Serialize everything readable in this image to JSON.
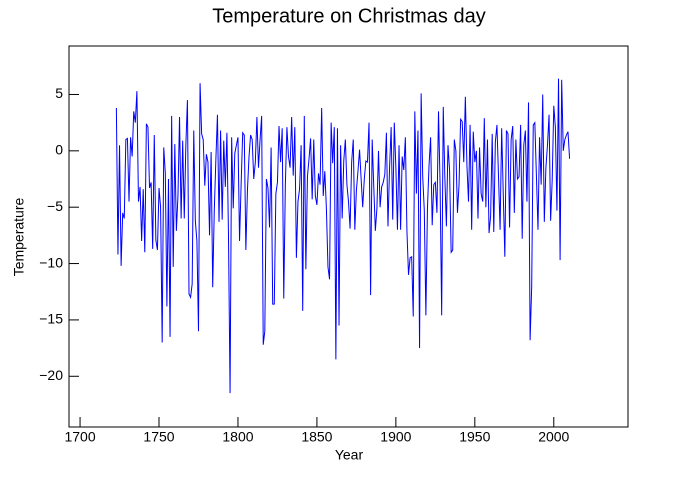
{
  "chart_data": {
    "type": "line",
    "title": "Temperature on Christmas day",
    "x_label": "Year",
    "y_label": "Temperature",
    "color": "#0000ff",
    "xlim": [
      1693,
      2047
    ],
    "xticks": [
      1700,
      1750,
      1800,
      1850,
      1900,
      1950,
      2000
    ],
    "ylim": [
      -24.5,
      9.3
    ],
    "yticks": [
      5,
      0,
      {
        "value": -5,
        "label": "−5"
      },
      {
        "value": -10,
        "label": "−10"
      },
      {
        "value": -15,
        "label": "−15"
      },
      {
        "value": -20,
        "label": "−20"
      }
    ],
    "x": [
      1723,
      1724,
      1725,
      1726,
      1727,
      1728,
      1729,
      1730,
      1731,
      1732,
      1733,
      1734,
      1735,
      1736,
      1737,
      1738,
      1739,
      1740,
      1741,
      1742,
      1743,
      1744,
      1745,
      1746,
      1747,
      1748,
      1749,
      1750,
      1751,
      1752,
      1753,
      1754,
      1755,
      1756,
      1757,
      1758,
      1759,
      1760,
      1761,
      1762,
      1763,
      1764,
      1765,
      1766,
      1767,
      1768,
      1769,
      1770,
      1771,
      1772,
      1773,
      1774,
      1775,
      1776,
      1777,
      1778,
      1779,
      1780,
      1781,
      1782,
      1783,
      1784,
      1785,
      1786,
      1787,
      1788,
      1789,
      1790,
      1791,
      1792,
      1793,
      1794,
      1795,
      1796,
      1797,
      1798,
      1799,
      1800,
      1801,
      1802,
      1803,
      1804,
      1805,
      1806,
      1807,
      1808,
      1809,
      1810,
      1811,
      1812,
      1813,
      1814,
      1815,
      1816,
      1817,
      1818,
      1819,
      1820,
      1821,
      1822,
      1823,
      1824,
      1825,
      1826,
      1827,
      1828,
      1829,
      1830,
      1831,
      1832,
      1833,
      1834,
      1835,
      1836,
      1837,
      1838,
      1839,
      1840,
      1841,
      1842,
      1843,
      1844,
      1845,
      1846,
      1847,
      1848,
      1849,
      1850,
      1851,
      1852,
      1853,
      1854,
      1855,
      1856,
      1857,
      1858,
      1859,
      1860,
      1861,
      1862,
      1863,
      1864,
      1865,
      1866,
      1867,
      1868,
      1869,
      1870,
      1871,
      1872,
      1873,
      1874,
      1875,
      1876,
      1877,
      1878,
      1879,
      1880,
      1881,
      1882,
      1883,
      1884,
      1885,
      1886,
      1887,
      1888,
      1889,
      1890,
      1891,
      1892,
      1893,
      1894,
      1895,
      1896,
      1897,
      1898,
      1899,
      1900,
      1901,
      1902,
      1903,
      1904,
      1905,
      1906,
      1907,
      1908,
      1909,
      1910,
      1911,
      1912,
      1913,
      1914,
      1915,
      1916,
      1917,
      1918,
      1919,
      1920,
      1921,
      1922,
      1923,
      1924,
      1925,
      1926,
      1927,
      1928,
      1929,
      1930,
      1931,
      1932,
      1933,
      1934,
      1935,
      1936,
      1937,
      1938,
      1939,
      1940,
      1941,
      1942,
      1943,
      1944,
      1945,
      1946,
      1947,
      1948,
      1949,
      1950,
      1951,
      1952,
      1953,
      1954,
      1955,
      1956,
      1957,
      1958,
      1959,
      1960,
      1961,
      1962,
      1963,
      1964,
      1965,
      1966,
      1967,
      1968,
      1969,
      1970,
      1971,
      1972,
      1973,
      1974,
      1975,
      1976,
      1977,
      1978,
      1979,
      1980,
      1981,
      1982,
      1983,
      1984,
      1985,
      1986,
      1987,
      1988,
      1989,
      1990,
      1991,
      1992,
      1993,
      1994,
      1995,
      1996,
      1997,
      1998,
      1999,
      2000,
      2001,
      2002,
      2003,
      2004,
      2005,
      2006,
      2007,
      2008,
      2009,
      2010
    ],
    "values": [
      3.8,
      -9.2,
      0.5,
      -10.2,
      -5.5,
      -6,
      1,
      1.1,
      -4.5,
      1.2,
      -0.5,
      3.5,
      2.5,
      5.3,
      -4.5,
      -3.2,
      -8,
      -3.4,
      -9,
      2.4,
      2.1,
      -3.3,
      -2.8,
      -8.7,
      1.4,
      -7.9,
      -8.8,
      -3.3,
      -5,
      -17,
      0.3,
      -2,
      -13.8,
      -2.5,
      -16.5,
      3.1,
      -10.3,
      0.6,
      -7.1,
      -4,
      3,
      -6,
      0.9,
      -6,
      0.5,
      4.5,
      -12.7,
      -13,
      -11.8,
      1.8,
      -6.2,
      -8,
      -16,
      6,
      1.5,
      1,
      -3.1,
      -0.3,
      -1,
      -7.5,
      -0.1,
      -12.1,
      -5.3,
      -0.8,
      3.2,
      -6.3,
      1.8,
      -6.1,
      0.9,
      -3.2,
      1.6,
      -7.5,
      -21.5,
      1.2,
      -5.1,
      -0.2,
      0.5,
      1.2,
      -8,
      -3,
      1.6,
      1.4,
      -8.8,
      -3.5,
      -0.5,
      1.4,
      1,
      -2.5,
      -1,
      3,
      -1.5,
      1,
      3.1,
      -17.2,
      -16,
      -2.5,
      -3.3,
      -6.8,
      0.3,
      -13.6,
      -13.6,
      -3.8,
      -2.8,
      2.2,
      -1,
      2,
      -13.1,
      -3,
      2.1,
      -0.5,
      -1.5,
      3,
      -2.2,
      2.1,
      -9.5,
      -4.5,
      -3.4,
      0.5,
      -14.2,
      3.1,
      -10.5,
      -2.3,
      -0.7,
      1.1,
      -4.3,
      1,
      -4,
      -4.8,
      -2,
      -3,
      3.8,
      -4,
      -1.8,
      -5.1,
      -10.3,
      -11.4,
      2.5,
      -1.1,
      2.1,
      -18.5,
      2,
      -15.5,
      0.5,
      -6,
      -0.9,
      1,
      -3,
      -4.5,
      -6.9,
      -1,
      1,
      -7,
      -3.5,
      -1.8,
      0.1,
      -2.5,
      -5,
      -2.5,
      -0.9,
      -1,
      2.5,
      -12.8,
      1,
      -3.2,
      -7.1,
      -5.1,
      0,
      -5,
      -3.2,
      -2.8,
      -2.1,
      1.6,
      -6.7,
      -1.5,
      2.1,
      -6.1,
      2.5,
      -1.5,
      -7,
      0.5,
      -7,
      -0.5,
      -1.7,
      1.2,
      -7.1,
      -11,
      -9.5,
      -9.4,
      -14.7,
      3.5,
      -3.8,
      1.8,
      -17.5,
      5.1,
      -2.3,
      -5.3,
      -14.6,
      -5.1,
      -1.3,
      1.2,
      -6.6,
      -3,
      -2.8,
      -5.5,
      3.5,
      -3,
      -14.6,
      3.9,
      -2.3,
      -6.7,
      0.5,
      -1.7,
      -9,
      -8.8,
      1,
      0,
      -5.5,
      -3,
      2.8,
      2.6,
      -1,
      4.8,
      -1.3,
      -4.5,
      2.3,
      -7,
      1.7,
      -1,
      0,
      -6,
      0.3,
      -3.8,
      -4.5,
      2.9,
      -5,
      1,
      -7.3,
      -5.8,
      1.5,
      -7.2,
      0.8,
      2.3,
      -2.3,
      -7,
      2,
      -3.8,
      -9.4,
      1.8,
      1.5,
      -6.8,
      1,
      2.2,
      -5.5,
      1,
      -2.5,
      -2.3,
      2.3,
      -7.8,
      0.5,
      1.8,
      -4.5,
      4.3,
      -16.8,
      -12.1,
      2.3,
      2.5,
      -2.2,
      -7,
      1.2,
      -3,
      5,
      -6.3,
      -1.5,
      0.5,
      3.2,
      -6.2,
      -2.6,
      4,
      2.1,
      -5.3,
      6.4,
      -9.7,
      6.3,
      0,
      1,
      1.4,
      1.7,
      -0.7
    ]
  }
}
